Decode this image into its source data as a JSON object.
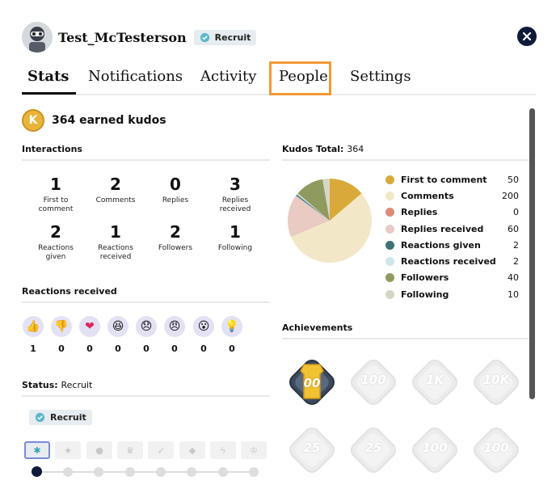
{
  "user": {
    "name": "Test_McTesterson",
    "rank_badge": "Recruit"
  },
  "tabs": [
    {
      "label": "Stats",
      "active": true
    },
    {
      "label": "Notifications",
      "active": false
    },
    {
      "label": "Activity",
      "active": false
    },
    {
      "label": "People",
      "active": false,
      "highlighted": true
    },
    {
      "label": "Settings",
      "active": false
    }
  ],
  "kudos": {
    "coin_letter": "K",
    "earned_text": "364 earned kudos"
  },
  "interactions": {
    "title": "Interactions",
    "stats": [
      {
        "value": "1",
        "label": "First to comment"
      },
      {
        "value": "2",
        "label": "Comments"
      },
      {
        "value": "0",
        "label": "Replies"
      },
      {
        "value": "3",
        "label": "Replies received"
      },
      {
        "value": "2",
        "label": "Reactions given"
      },
      {
        "value": "1",
        "label": "Reactions received"
      },
      {
        "value": "2",
        "label": "Followers"
      },
      {
        "value": "1",
        "label": "Following"
      }
    ]
  },
  "reactions": {
    "title": "Reactions received",
    "items": [
      {
        "icon": "thumbs-up-icon",
        "glyph": "👍",
        "count": "1"
      },
      {
        "icon": "thumbs-down-icon",
        "glyph": "👎",
        "count": "0"
      },
      {
        "icon": "heart-icon",
        "glyph": "❤",
        "count": "0"
      },
      {
        "icon": "laughing-icon",
        "glyph": "😆",
        "count": "0"
      },
      {
        "icon": "sad-icon",
        "glyph": "😞",
        "count": "0"
      },
      {
        "icon": "angry-icon",
        "glyph": "😠",
        "count": "0"
      },
      {
        "icon": "surprised-icon",
        "glyph": "😮",
        "count": "0"
      },
      {
        "icon": "lightbulb-icon",
        "glyph": "💡",
        "count": "0"
      }
    ]
  },
  "status": {
    "label": "Status:",
    "value": "Recruit",
    "badge": "Recruit",
    "levels": [
      {
        "icon": "recruit-icon",
        "glyph": "✱"
      },
      {
        "icon": "star-icon",
        "glyph": "★"
      },
      {
        "icon": "chat-icon",
        "glyph": "●"
      },
      {
        "icon": "trophy-icon",
        "glyph": "♛"
      },
      {
        "icon": "rocket-icon",
        "glyph": "➶"
      },
      {
        "icon": "diamond-icon",
        "glyph": "◆"
      },
      {
        "icon": "lightning-icon",
        "glyph": "ϟ"
      },
      {
        "icon": "crown-icon",
        "glyph": "♔"
      }
    ],
    "current_level": 1
  },
  "kudos_total": {
    "label": "Kudos Total:",
    "value": "364"
  },
  "chart_data": {
    "type": "pie",
    "title": "",
    "slices": [
      {
        "name": "First to comment",
        "value": 50,
        "color": "#d9aa3a"
      },
      {
        "name": "Comments",
        "value": 200,
        "color": "#f2e7c7"
      },
      {
        "name": "Replies",
        "value": 0,
        "color": "#e08a78"
      },
      {
        "name": "Replies received",
        "value": 60,
        "color": "#e9cbc3"
      },
      {
        "name": "Reactions given",
        "value": 2,
        "color": "#3f7178"
      },
      {
        "name": "Reactions received",
        "value": 2,
        "color": "#cfe6ea"
      },
      {
        "name": "Followers",
        "value": 40,
        "color": "#8f9a5e"
      },
      {
        "name": "Following",
        "value": 10,
        "color": "#d6d6c4"
      }
    ],
    "legend_placement": "right"
  },
  "achievements": {
    "title": "Achievements",
    "items": [
      {
        "label": "00",
        "earned": true,
        "icon": "jersey-icon"
      },
      {
        "label": "100",
        "earned": false,
        "icon": "badge-icon"
      },
      {
        "label": "1K",
        "earned": false,
        "icon": "badge-icon"
      },
      {
        "label": "10K",
        "earned": false,
        "icon": "badge-icon"
      },
      {
        "label": "25",
        "earned": false,
        "icon": "person-icon"
      },
      {
        "label": "25",
        "earned": false,
        "icon": "person-check-icon"
      },
      {
        "label": "100",
        "earned": false,
        "icon": "person-icon"
      },
      {
        "label": "100",
        "earned": false,
        "icon": "person-check-icon"
      }
    ]
  },
  "colors": {
    "accent_highlight": "#f29a38",
    "navy": "#0f1a3a",
    "reaction_bg": "#e3e1f4",
    "gold": "#e9b43a"
  }
}
